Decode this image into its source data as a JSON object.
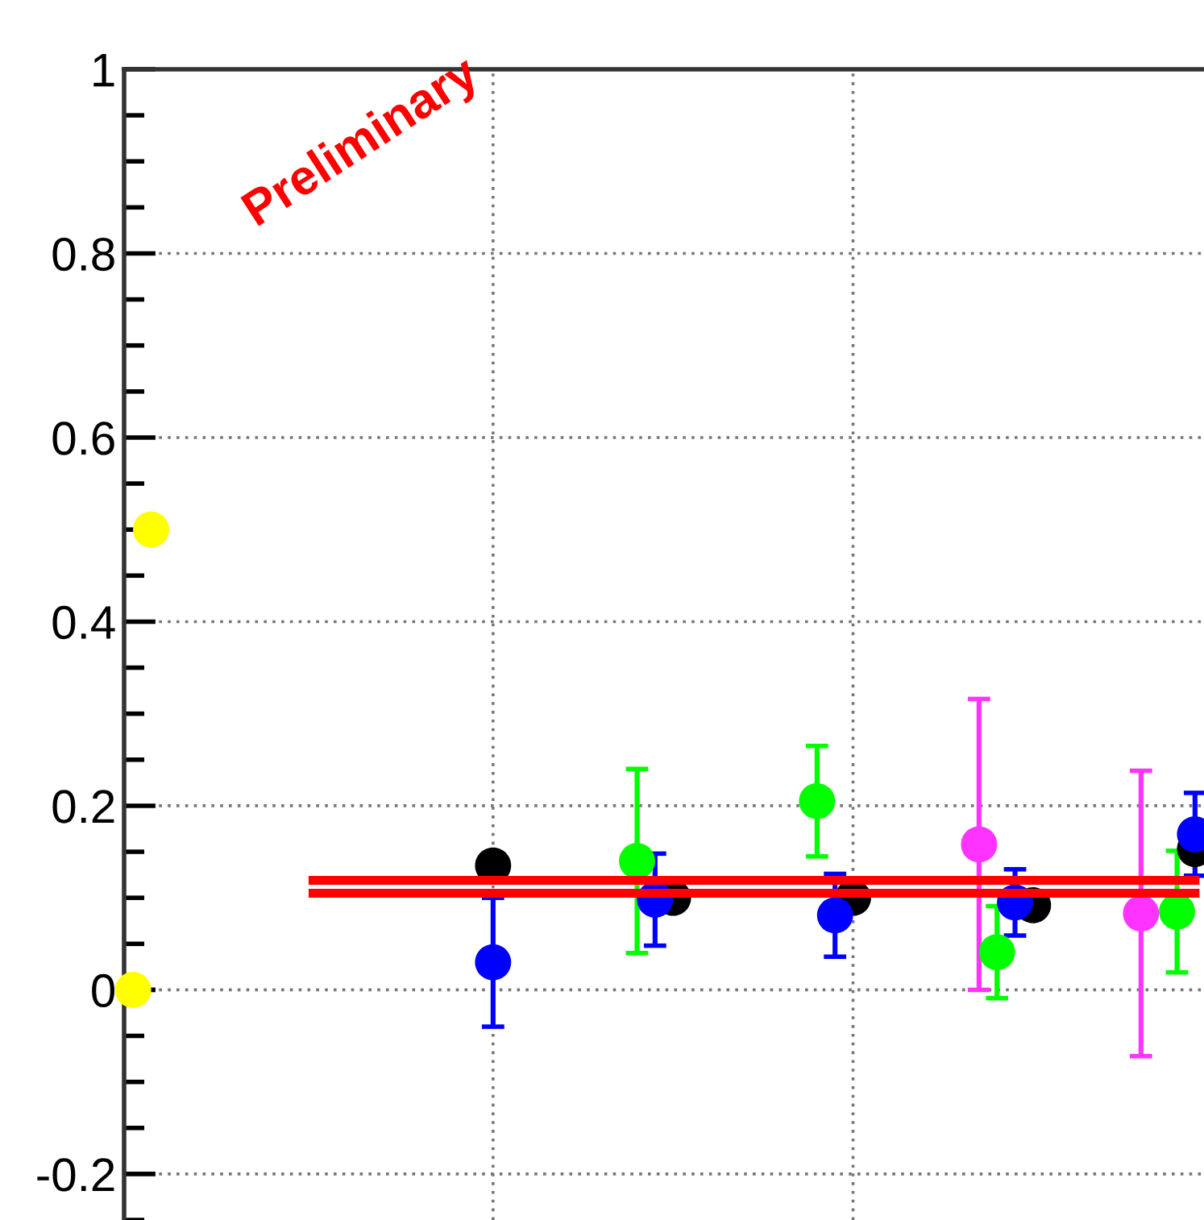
{
  "chart_data": {
    "type": "scatter",
    "categories": [
      null,
      null,
      null,
      null,
      null,
      null,
      null,
      null,
      null,
      null,
      null,
      null,
      null,
      null,
      null,
      null,
      null,
      null,
      null,
      null,
      null,
      null,
      null,
      null,
      null,
      null,
      null,
      null,
      null,
      null,
      null,
      null,
      null,
      null,
      null,
      null,
      null,
      null,
      null,
      null,
      null,
      null,
      null,
      null,
      null,
      null,
      null,
      null,
      null,
      null,
      null,
      null,
      null,
      null,
      null,
      null,
      null,
      null,
      null,
      null
    ],
    "series": [
      {
        "color": "#ffff00",
        "values": [
          0,
          0.5,
          null,
          null,
          null,
          null,
          null,
          null,
          null,
          null,
          null,
          null,
          null,
          null,
          null,
          null,
          null,
          null,
          null,
          null,
          null,
          null,
          null,
          null,
          null,
          null,
          null,
          null,
          null,
          null,
          null,
          null,
          null,
          null,
          null,
          null,
          null,
          null,
          null,
          null,
          null,
          null,
          null,
          null,
          null,
          null,
          null,
          null,
          null,
          null,
          null,
          null,
          null,
          null,
          null,
          null,
          null,
          null,
          null,
          null
        ]
      },
      {
        "type": "line",
        "marker": "none",
        "color": "#ff0000",
        "values": [
          null,
          null,
          null,
          null,
          null,
          null,
          null,
          null,
          null,
          null,
          0.119,
          0.119,
          0.119,
          0.119,
          0.119,
          0.119,
          0.119,
          0.119,
          0.119,
          0.119,
          0.119,
          0.119,
          0.119,
          0.119,
          0.119,
          0.119,
          0.119,
          0.119,
          0.119,
          0.119,
          0.119,
          0.119,
          0.119,
          0.119,
          0.119,
          0.119,
          0.119,
          0.119,
          0.119,
          0.119,
          0.119,
          0.119,
          0.119,
          0.119,
          0.119,
          0.119,
          0.119,
          0.119,
          0.119,
          0.119,
          0.119,
          0.119,
          0.119,
          0.119,
          0.119,
          0.119,
          0.119,
          0.119,
          0.119,
          0.119
        ]
      },
      {
        "type": "line",
        "marker": "none",
        "color": "#ff0000",
        "values": [
          null,
          null,
          null,
          null,
          null,
          null,
          null,
          null,
          null,
          null,
          0.105,
          0.105,
          0.105,
          0.105,
          0.105,
          0.105,
          0.105,
          0.105,
          0.105,
          0.105,
          0.105,
          0.105,
          0.105,
          0.105,
          0.105,
          0.105,
          0.105,
          0.105,
          0.105,
          0.105,
          0.105,
          0.105,
          0.105,
          0.105,
          0.105,
          0.105,
          0.105,
          0.105,
          0.105,
          0.105,
          0.105,
          0.105,
          0.105,
          0.105,
          0.105,
          0.105,
          0.105,
          0.105,
          0.105,
          0.105,
          0.105,
          0.105,
          0.105,
          0.105,
          0.105,
          0.105,
          0.105,
          0.105,
          0.105,
          0.105
        ]
      },
      {
        "color": "#000000",
        "values": [
          null,
          null,
          null,
          null,
          null,
          null,
          null,
          null,
          null,
          null,
          null,
          null,
          null,
          null,
          null,
          null,
          null,
          null,
          null,
          null,
          0.135,
          null,
          null,
          null,
          null,
          null,
          null,
          null,
          null,
          null,
          0.1,
          null,
          null,
          null,
          null,
          null,
          null,
          null,
          null,
          null,
          0.1,
          null,
          null,
          null,
          null,
          null,
          null,
          null,
          null,
          null,
          0.092,
          null,
          null,
          null,
          null,
          null,
          null,
          null,
          null,
          0.153
        ]
      },
      {
        "color": "#0000ff",
        "values": [
          null,
          null,
          null,
          null,
          null,
          null,
          null,
          null,
          null,
          null,
          null,
          null,
          null,
          null,
          null,
          null,
          null,
          null,
          null,
          null,
          0.03,
          null,
          null,
          null,
          null,
          null,
          null,
          null,
          null,
          0.098,
          null,
          null,
          null,
          null,
          null,
          null,
          null,
          null,
          null,
          0.081,
          null,
          null,
          null,
          null,
          null,
          null,
          null,
          null,
          null,
          0.095,
          null,
          null,
          null,
          null,
          null,
          null,
          null,
          null,
          null,
          0.169
        ],
        "errors": [
          null,
          null,
          null,
          null,
          null,
          null,
          null,
          null,
          null,
          null,
          null,
          null,
          null,
          null,
          null,
          null,
          null,
          null,
          null,
          null,
          0.07,
          null,
          null,
          null,
          null,
          null,
          null,
          null,
          null,
          0.05,
          null,
          null,
          null,
          null,
          null,
          null,
          null,
          null,
          null,
          0.045,
          null,
          null,
          null,
          null,
          null,
          null,
          null,
          null,
          null,
          0.036,
          null,
          null,
          null,
          null,
          null,
          null,
          null,
          null,
          null,
          0.045
        ]
      },
      {
        "color": "#00ff00",
        "values": [
          null,
          null,
          null,
          null,
          null,
          null,
          null,
          null,
          null,
          null,
          null,
          null,
          null,
          null,
          null,
          null,
          null,
          null,
          null,
          null,
          null,
          null,
          null,
          null,
          null,
          null,
          null,
          null,
          0.14,
          null,
          null,
          null,
          null,
          null,
          null,
          null,
          null,
          null,
          0.205,
          null,
          null,
          null,
          null,
          null,
          null,
          null,
          null,
          null,
          0.041,
          null,
          null,
          null,
          null,
          null,
          null,
          null,
          null,
          null,
          0.085,
          null
        ],
        "errors": [
          null,
          null,
          null,
          null,
          null,
          null,
          null,
          null,
          null,
          null,
          null,
          null,
          null,
          null,
          null,
          null,
          null,
          null,
          null,
          null,
          null,
          null,
          null,
          null,
          null,
          null,
          null,
          null,
          0.1,
          null,
          null,
          null,
          null,
          null,
          null,
          null,
          null,
          null,
          0.06,
          null,
          null,
          null,
          null,
          null,
          null,
          null,
          null,
          null,
          0.05,
          null,
          null,
          null,
          null,
          null,
          null,
          null,
          null,
          null,
          0.066,
          null
        ]
      },
      {
        "color": "#ff33ff",
        "values": [
          null,
          null,
          null,
          null,
          null,
          null,
          null,
          null,
          null,
          null,
          null,
          null,
          null,
          null,
          null,
          null,
          null,
          null,
          null,
          null,
          null,
          null,
          null,
          null,
          null,
          null,
          null,
          null,
          null,
          null,
          null,
          null,
          null,
          null,
          null,
          null,
          null,
          null,
          null,
          null,
          null,
          null,
          null,
          null,
          null,
          null,
          null,
          0.158,
          null,
          null,
          null,
          null,
          null,
          null,
          null,
          null,
          0.083,
          null,
          null,
          null
        ],
        "errors": [
          null,
          null,
          null,
          null,
          null,
          null,
          null,
          null,
          null,
          null,
          null,
          null,
          null,
          null,
          null,
          null,
          null,
          null,
          null,
          null,
          null,
          null,
          null,
          null,
          null,
          null,
          null,
          null,
          null,
          null,
          null,
          null,
          null,
          null,
          null,
          null,
          null,
          null,
          null,
          null,
          null,
          null,
          null,
          null,
          null,
          null,
          null,
          0.158,
          null,
          null,
          null,
          null,
          null,
          null,
          null,
          null,
          0.155,
          null,
          null,
          null
        ]
      }
    ],
    "ylim": [
      -0.25,
      1
    ],
    "yticks": [
      -0.2,
      0,
      0.2,
      0.4,
      0.6,
      0.8,
      1
    ],
    "grid": true,
    "marker": "circle",
    "tick_labels": "y",
    "annotations": [
      "Preliminary"
    ]
  }
}
